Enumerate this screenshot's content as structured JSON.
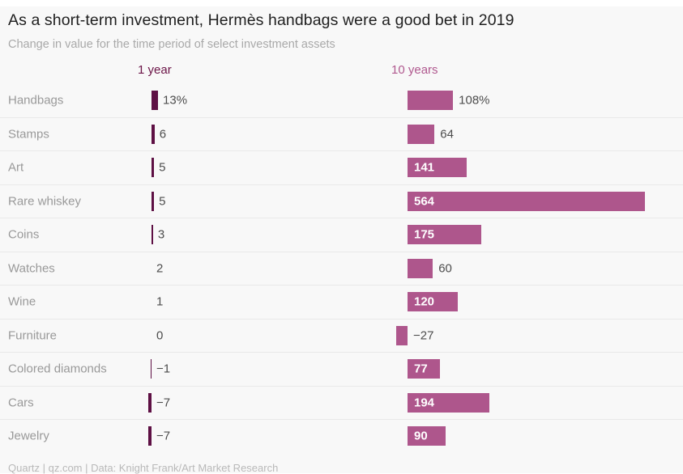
{
  "chart_data": {
    "type": "bar",
    "title": "As a short-term investment, Hermès handbags were a good bet in 2019",
    "subtitle": "Change in value for the time period of select investment assets",
    "categories": [
      "Handbags",
      "Stamps",
      "Art",
      "Rare whiskey",
      "Coins",
      "Watches",
      "Wine",
      "Furniture",
      "Colored diamonds",
      "Cars",
      "Jewelry"
    ],
    "series": [
      {
        "name": "1 year",
        "values": [
          13,
          6,
          5,
          5,
          3,
          2,
          1,
          0,
          -1,
          -7,
          -7
        ],
        "display_labels": [
          "13%",
          "6",
          "5",
          "5",
          "3",
          "2",
          "1",
          "0",
          "−1",
          "−7",
          "−7"
        ],
        "color": "#5e1044",
        "header_color": "#6b1447"
      },
      {
        "name": "10 years",
        "values": [
          108,
          64,
          141,
          564,
          175,
          60,
          120,
          -27,
          77,
          194,
          90
        ],
        "display_labels": [
          "108%",
          "64",
          "141",
          "564",
          "175",
          "60",
          "120",
          "−27",
          "77",
          "194",
          "90"
        ],
        "color": "#ae568c",
        "header_color": "#b0598f",
        "label_inside": [
          false,
          false,
          true,
          true,
          true,
          false,
          true,
          false,
          true,
          true,
          true
        ]
      }
    ],
    "layout": {
      "unit": "percent change",
      "grid": false,
      "legend_position": "column headers above bars",
      "negative_bars_extend_left": true
    },
    "footer": "Quartz | qz.com | Data: Knight Frank/Art Market Research"
  },
  "colors": {
    "background": "#f8f8f8",
    "bar_1year": "#5e1044",
    "bar_10years": "#ae568c",
    "row_separator": "#e9e9e9",
    "title_text": "#1f1f1f",
    "subtitle_text": "#a9a9a9",
    "category_text": "#999999",
    "value_text": "#4d4d4d",
    "inside_label_text": "#ffffff"
  }
}
